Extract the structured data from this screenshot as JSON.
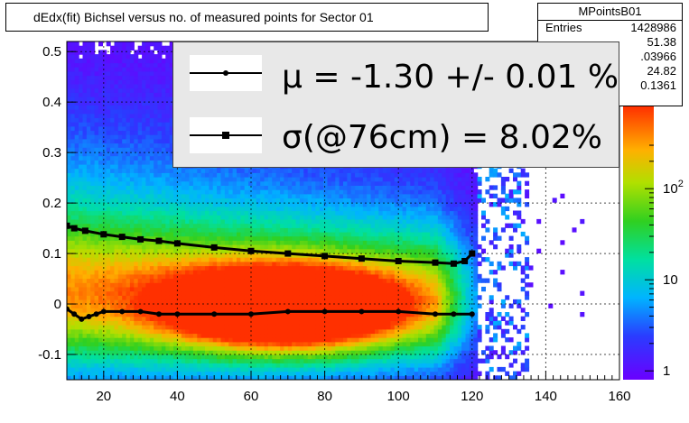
{
  "title": "dEdx(fit) Bichsel versus no. of measured points for Sector 01",
  "stats": {
    "name": "MPointsB01",
    "rows": [
      {
        "key": "Entries",
        "value": "1428986"
      },
      {
        "key": "",
        "value": "51.38"
      },
      {
        "key": "",
        "value": ".03966"
      },
      {
        "key": "",
        "value": "24.82"
      },
      {
        "key": "",
        "value": "0.1361"
      }
    ]
  },
  "legend": {
    "mu_text": "μ  = -1.30 +/-  0.01 %",
    "sigma_text": "σ(@76cm) =  8.02%"
  },
  "colors": {
    "frame": "#000000",
    "mean_series": "#000000",
    "sigma_series": "#000000",
    "palette_low": "#6a00ff",
    "palette_high": "#ff2000"
  },
  "chart_data": {
    "type": "heatmap",
    "title": "dEdx(fit) Bichsel versus no. of measured points for Sector 01",
    "xlabel": "",
    "ylabel": "",
    "xlim": [
      10,
      160
    ],
    "ylim": [
      -0.15,
      0.52
    ],
    "grid": true,
    "log_z": true,
    "x_ticks": [
      20,
      40,
      60,
      80,
      100,
      120,
      140,
      160
    ],
    "y_ticks": [
      -0.1,
      0,
      0.1,
      0.2,
      0.3,
      0.4,
      0.5
    ],
    "x_tick_labels": [
      "20",
      "40",
      "60",
      "80",
      "100",
      "120",
      "140",
      "160"
    ],
    "y_tick_labels": [
      "-0.1",
      "0",
      "0.1",
      "0.2",
      "0.3",
      "0.4",
      "0.5"
    ],
    "z_ticks": [
      1,
      10,
      100
    ],
    "z_tick_labels": [
      "1",
      "10",
      "10^2"
    ],
    "series": [
      {
        "name": "μ",
        "marker": "circle",
        "x": [
          10,
          12,
          14,
          16,
          18,
          20,
          25,
          30,
          35,
          40,
          50,
          60,
          70,
          80,
          90,
          100,
          110,
          115,
          120
        ],
        "y": [
          -0.01,
          -0.02,
          -0.03,
          -0.025,
          -0.02,
          -0.015,
          -0.015,
          -0.015,
          -0.02,
          -0.02,
          -0.02,
          -0.02,
          -0.015,
          -0.015,
          -0.015,
          -0.015,
          -0.02,
          -0.02,
          -0.02
        ]
      },
      {
        "name": "σ(@76cm)",
        "marker": "square",
        "x": [
          10,
          12,
          15,
          20,
          25,
          30,
          35,
          40,
          50,
          60,
          70,
          80,
          90,
          100,
          110,
          115,
          118,
          120
        ],
        "y": [
          0.155,
          0.15,
          0.145,
          0.138,
          0.133,
          0.128,
          0.125,
          0.12,
          0.112,
          0.105,
          0.1,
          0.095,
          0.09,
          0.085,
          0.082,
          0.08,
          0.085,
          0.1
        ]
      }
    ]
  }
}
